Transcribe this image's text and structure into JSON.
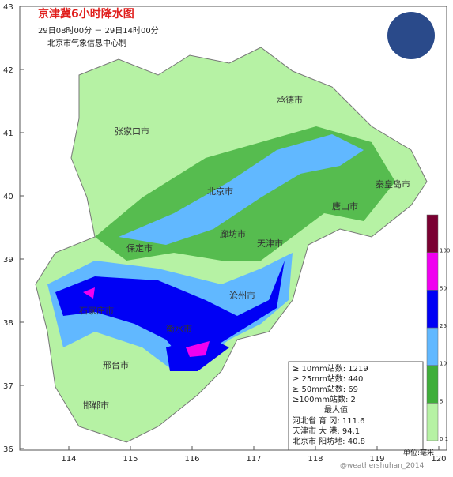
{
  "header": {
    "title": "京津冀6小时降水图",
    "subtitle": "29日08时00分 － 29日14时00分",
    "producer": "北京市气象信息中心制"
  },
  "map": {
    "lat_ticks": [
      43,
      42,
      41,
      40,
      39,
      38,
      37,
      36
    ],
    "lon_ticks": [
      114,
      115,
      116,
      117,
      118,
      119,
      120
    ],
    "cities": [
      "张家口市",
      "承德市",
      "秦皇岛市",
      "唐山市",
      "北京市",
      "廊坊市",
      "天津市",
      "保定市",
      "沧州市",
      "石家庄市",
      "衡水市",
      "邢台市",
      "邯郸市"
    ]
  },
  "legend": {
    "levels": [
      {
        "label": "0.1",
        "color": "#b6f2a4"
      },
      {
        "label": "5",
        "color": "#3fae3a"
      },
      {
        "label": "10",
        "color": "#61b8ff"
      },
      {
        "label": "25",
        "color": "#0000f5"
      },
      {
        "label": "50",
        "color": "#f000f0"
      },
      {
        "label": "100",
        "color": "#7a0032"
      }
    ],
    "unit": "单位:毫米"
  },
  "stats": {
    "lines": [
      "≥ 10mm站数: 1219",
      "≥ 25mm站数: 440",
      "≥ 50mm站数: 69",
      "≥100mm站数: 2"
    ],
    "max_title": "最大值",
    "max_lines": [
      "河北省 育 冈: 111.6",
      "天津市 大 港: 94.1",
      "北京市 阳坊地: 40.8"
    ]
  },
  "watermark": "@weathershuhan_2014"
}
